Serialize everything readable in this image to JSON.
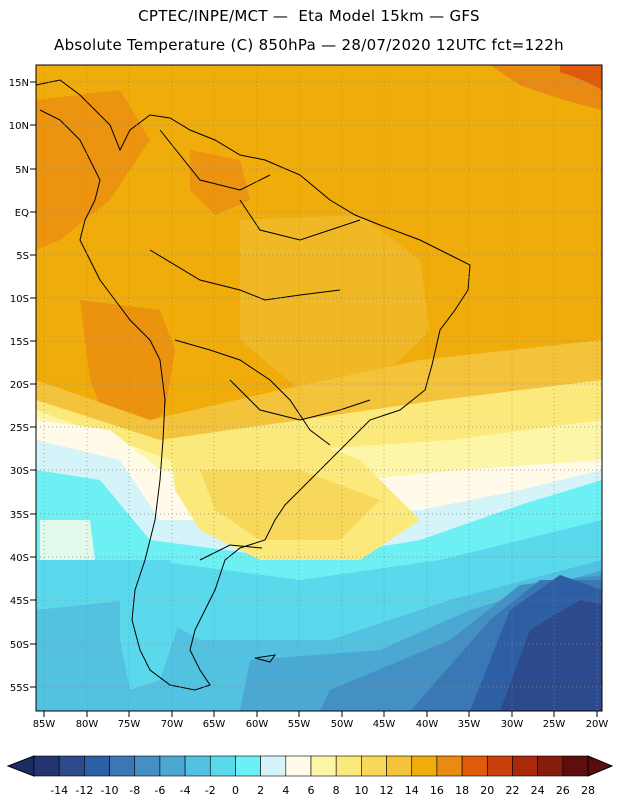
{
  "header": {
    "line1": "CPTEC/INPE/MCT —  Eta Model 15km — GFS",
    "line2": "Absolute Temperature (C) 850hPa — 28/07/2020 12UTC fct=122h"
  },
  "map": {
    "region": "South America",
    "lon_range": [
      -85,
      -20
    ],
    "lat_range": [
      -58,
      16
    ],
    "lat_labels": [
      "15N",
      "10N",
      "5N",
      "EQ",
      "5S",
      "10S",
      "15S",
      "20S",
      "25S",
      "30S",
      "35S",
      "40S",
      "45S",
      "50S",
      "55S"
    ],
    "lon_labels": [
      "85W",
      "80W",
      "75W",
      "70W",
      "65W",
      "60W",
      "55W",
      "50W",
      "45W",
      "40W",
      "35W",
      "30W",
      "25W",
      "20W"
    ],
    "grid_style": "dotted",
    "coastline_color": "#000000"
  },
  "colorbar": {
    "labels": [
      "-14",
      "-12",
      "-10",
      "-8",
      "-6",
      "-4",
      "-2",
      "0",
      "2",
      "4",
      "6",
      "8",
      "10",
      "12",
      "14",
      "16",
      "18",
      "20",
      "22",
      "24",
      "26",
      "28"
    ],
    "colors": [
      "#23346f",
      "#2c4a8c",
      "#2e5ea3",
      "#3a78b5",
      "#4490c4",
      "#4aa8d2",
      "#52c2e0",
      "#5ad8ec",
      "#6cf0f4",
      "#d4f4fa",
      "#fffbe8",
      "#fdf6a8",
      "#fbe97c",
      "#f7d85a",
      "#f3c33c",
      "#f0ac0a",
      "#e98a12",
      "#de5b0c",
      "#c8400b",
      "#a82a0a",
      "#861c0c",
      "#5d0e0e"
    ],
    "low_arrow_color": "#1c2d66",
    "high_arrow_color": "#5a0c10"
  }
}
